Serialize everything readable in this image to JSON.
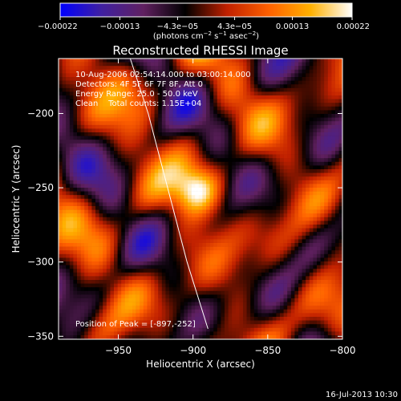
{
  "chart_data": {
    "type": "heatmap",
    "title": "Reconstructed RHESSI Image",
    "xlabel": "Heliocentric X (arcsec)",
    "ylabel": "Heliocentric Y (arcsec)",
    "xlim": [
      -990,
      -800
    ],
    "ylim": [
      -352,
      -163
    ],
    "x_ticks": [
      -950,
      -900,
      -850,
      -800
    ],
    "x_tick_labels": [
      "−950",
      "−900",
      "−850",
      "−800"
    ],
    "y_ticks": [
      -200,
      -250,
      -300,
      -350
    ],
    "y_tick_labels": [
      "−200",
      "−250",
      "−300",
      "−350"
    ],
    "colorbar": {
      "min": -0.00022,
      "max": 0.00022,
      "ticks": [
        -0.00022,
        -0.00013,
        -4.3e-05,
        4.3e-05,
        0.00013,
        0.00022
      ],
      "tick_labels": [
        "−0.00022",
        "−0.00013",
        "−4.3e−05",
        "4.3e−05",
        "0.00013",
        "0.00022"
      ],
      "unit_label_main": "(photons cm",
      "unit_sup1": "−2",
      "unit_mid": " s",
      "unit_sup2": "−1",
      "unit_mid2": " asec",
      "unit_sup3": "−2",
      "unit_end": ")",
      "colors": [
        "#0000ff",
        "#4020a0",
        "#602060",
        "#000000",
        "#c02000",
        "#ff6000",
        "#ffb000",
        "#ffffff"
      ]
    },
    "annotations": [
      "10-Aug-2006 02:54:14.000 to 03:00:14.000",
      "Detectors: 4F 5F 6F 7F 8F, Att 0",
      "Energy Range: 25.0 - 50.0 keV",
      "Clean    Total counts: 1.15E+04"
    ],
    "peak_label": "Position of Peak = [-897,-252]",
    "peak": [
      -897,
      -252
    ],
    "limb_curve": [
      [
        -942,
        -163
      ],
      [
        -930,
        -200
      ],
      [
        -917,
        -250
      ],
      [
        -904,
        -300
      ],
      [
        -890,
        -345
      ]
    ],
    "footer": "16-Jul-2013 10:30"
  }
}
